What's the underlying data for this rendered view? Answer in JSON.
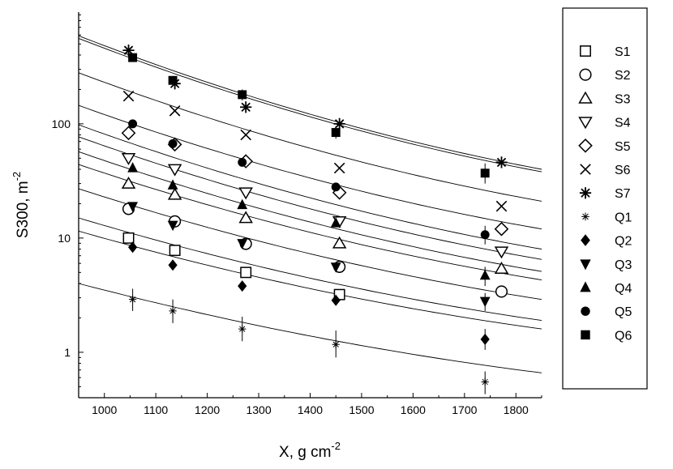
{
  "chart_data": {
    "type": "scatter",
    "xlabel": "X, g cm",
    "xlabel_sup": "-2",
    "ylabel": "S300, m",
    "ylabel_sup": "-2",
    "xlim": [
      950,
      1850
    ],
    "ylim": [
      0.4,
      950
    ],
    "y_scale": "log",
    "x_ticks": [
      1000,
      1100,
      1200,
      1300,
      1400,
      1500,
      1600,
      1700,
      1800
    ],
    "x_tick_labels": [
      "1000",
      "1100",
      "1200",
      "1300",
      "1400",
      "1500",
      "1600",
      "1700",
      "1800"
    ],
    "y_ticks": [
      1,
      10,
      100
    ],
    "y_tick_labels": [
      "1",
      "10",
      "100"
    ],
    "grid": false,
    "legend_placement": "right",
    "series": [
      {
        "name": "S1",
        "marker": "square-open",
        "points": [
          [
            1047,
            10
          ],
          [
            1137,
            7.8
          ],
          [
            1275,
            5.0
          ],
          [
            1457,
            3.2
          ]
        ]
      },
      {
        "name": "S2",
        "marker": "circle-open",
        "points": [
          [
            1047,
            18
          ],
          [
            1137,
            14
          ],
          [
            1275,
            8.9
          ],
          [
            1457,
            5.6
          ],
          [
            1772,
            3.4
          ]
        ]
      },
      {
        "name": "S3",
        "marker": "triangle-up-open",
        "points": [
          [
            1047,
            30
          ],
          [
            1137,
            24
          ],
          [
            1275,
            15
          ],
          [
            1457,
            9.0
          ],
          [
            1772,
            5.4
          ]
        ]
      },
      {
        "name": "S4",
        "marker": "triangle-down-open",
        "points": [
          [
            1047,
            50
          ],
          [
            1137,
            40
          ],
          [
            1275,
            25
          ],
          [
            1457,
            14
          ],
          [
            1772,
            7.6
          ]
        ]
      },
      {
        "name": "S5",
        "marker": "diamond-open",
        "points": [
          [
            1047,
            83
          ],
          [
            1137,
            66
          ],
          [
            1275,
            47
          ],
          [
            1457,
            25
          ],
          [
            1772,
            12
          ]
        ]
      },
      {
        "name": "S6",
        "marker": "x",
        "points": [
          [
            1047,
            175
          ],
          [
            1137,
            130
          ],
          [
            1275,
            80
          ],
          [
            1457,
            41
          ],
          [
            1772,
            19
          ]
        ]
      },
      {
        "name": "S7",
        "marker": "asterisk",
        "points": [
          [
            1047,
            440
          ],
          [
            1137,
            225
          ],
          [
            1275,
            140
          ],
          [
            1457,
            100
          ],
          [
            1772,
            46
          ]
        ]
      },
      {
        "name": "Q1",
        "marker": "star-small",
        "points": [
          [
            1055,
            2.9
          ],
          [
            1133,
            2.3
          ],
          [
            1268,
            1.6
          ],
          [
            1450,
            1.17
          ],
          [
            1740,
            0.55
          ]
        ]
      },
      {
        "name": "Q2",
        "marker": "diamond-filled",
        "points": [
          [
            1055,
            8.3
          ],
          [
            1133,
            5.8
          ],
          [
            1268,
            3.8
          ],
          [
            1450,
            2.85
          ],
          [
            1740,
            1.3
          ]
        ]
      },
      {
        "name": "Q3",
        "marker": "triangle-down-filled",
        "points": [
          [
            1055,
            19
          ],
          [
            1133,
            13
          ],
          [
            1268,
            9.0
          ],
          [
            1450,
            5.6
          ],
          [
            1740,
            2.8
          ]
        ]
      },
      {
        "name": "Q4",
        "marker": "triangle-up-filled",
        "points": [
          [
            1055,
            41
          ],
          [
            1133,
            29
          ],
          [
            1268,
            19.5
          ],
          [
            1450,
            13.5
          ],
          [
            1740,
            4.7
          ]
        ]
      },
      {
        "name": "Q5",
        "marker": "circle-filled",
        "points": [
          [
            1055,
            100
          ],
          [
            1133,
            67
          ],
          [
            1268,
            46
          ],
          [
            1450,
            28
          ],
          [
            1740,
            10.7
          ]
        ]
      },
      {
        "name": "Q6",
        "marker": "square-filled",
        "points": [
          [
            1055,
            380
          ],
          [
            1133,
            240
          ],
          [
            1268,
            180
          ],
          [
            1450,
            84
          ],
          [
            1740,
            37
          ]
        ]
      }
    ],
    "fit_curves": [
      {
        "at_x": [
          950,
          1850
        ],
        "values": [
          590,
          40
        ]
      },
      {
        "at_x": [
          950,
          1850
        ],
        "values": [
          560,
          38
        ]
      },
      {
        "at_x": [
          950,
          1850
        ],
        "values": [
          280,
          21
        ]
      },
      {
        "at_x": [
          950,
          1850
        ],
        "values": [
          145,
          12
        ]
      },
      {
        "at_x": [
          950,
          1850
        ],
        "values": [
          98,
          8
        ]
      },
      {
        "at_x": [
          950,
          1850
        ],
        "values": [
          77,
          6.5
        ]
      },
      {
        "at_x": [
          950,
          1850
        ],
        "values": [
          57,
          5.1
        ]
      },
      {
        "at_x": [
          950,
          1850
        ],
        "values": [
          44,
          4.3
        ]
      },
      {
        "at_x": [
          950,
          1850
        ],
        "values": [
          27,
          2.9
        ]
      },
      {
        "at_x": [
          950,
          1850
        ],
        "values": [
          15,
          1.9
        ]
      },
      {
        "at_x": [
          950,
          1850
        ],
        "values": [
          11.5,
          1.6
        ]
      },
      {
        "at_x": [
          950,
          1850
        ],
        "values": [
          4.0,
          0.66
        ]
      }
    ],
    "error_bars": [
      {
        "x": 1055,
        "low": 2.3,
        "high": 3.6
      },
      {
        "x": 1133,
        "low": 1.8,
        "high": 2.9
      },
      {
        "x": 1268,
        "low": 1.25,
        "high": 2.05
      },
      {
        "x": 1450,
        "low": 0.9,
        "high": 1.55
      },
      {
        "x": 1740,
        "low": 0.43,
        "high": 0.68
      },
      {
        "x": 1740,
        "low": 1.05,
        "high": 1.6
      },
      {
        "x": 1740,
        "low": 2.3,
        "high": 3.3
      },
      {
        "x": 1740,
        "low": 3.8,
        "high": 5.6
      },
      {
        "x": 1740,
        "low": 8.8,
        "high": 12.8
      },
      {
        "x": 1740,
        "low": 30,
        "high": 45
      },
      {
        "x": 1450,
        "low": 74,
        "high": 95
      },
      {
        "x": 1268,
        "low": 160,
        "high": 200
      }
    ]
  }
}
